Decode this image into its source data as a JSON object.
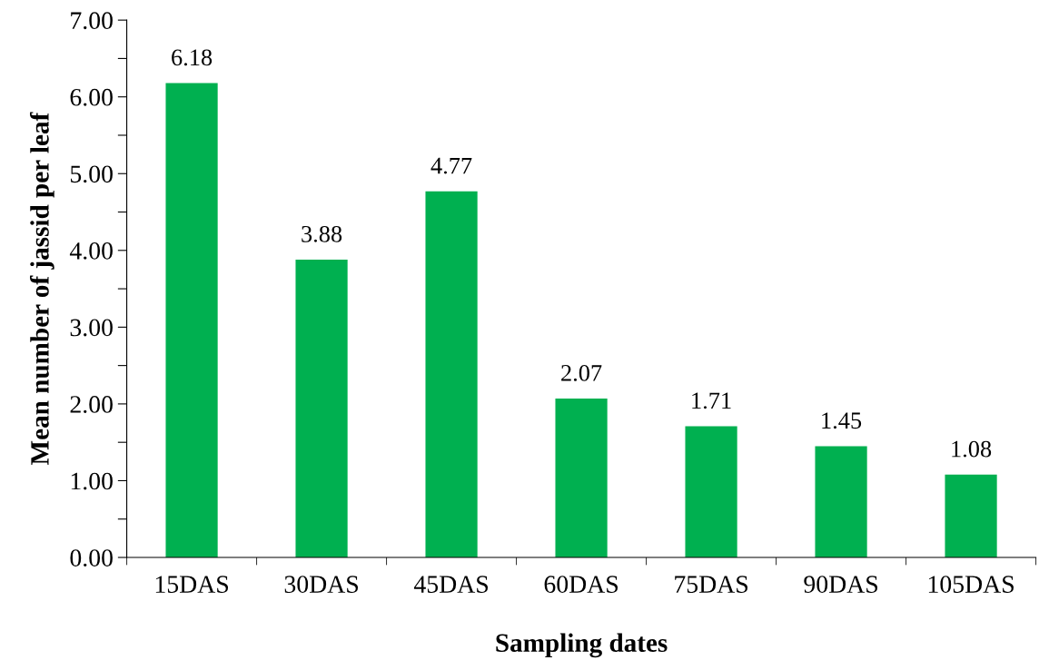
{
  "chart_data": {
    "type": "bar",
    "xlabel": "Sampling dates",
    "ylabel": "Mean number of jassid per leaf",
    "categories": [
      "15DAS",
      "30DAS",
      "45DAS",
      "60DAS",
      "75DAS",
      "90DAS",
      "105DAS"
    ],
    "values": [
      6.18,
      3.88,
      4.77,
      2.07,
      1.71,
      1.45,
      1.08
    ],
    "color": "#00b050",
    "data_labels": true,
    "ylim": [
      0,
      7
    ],
    "yticks": [
      {
        "value": 0,
        "label": "0.00"
      },
      {
        "value": 0.5,
        "label": null
      },
      {
        "value": 1,
        "label": "1.00"
      },
      {
        "value": 1.5,
        "label": null
      },
      {
        "value": 2,
        "label": "2.00"
      },
      {
        "value": 2.5,
        "label": null
      },
      {
        "value": 3,
        "label": "3.00"
      },
      {
        "value": 3.5,
        "label": null
      },
      {
        "value": 4,
        "label": "4.00"
      },
      {
        "value": 4.5,
        "label": null
      },
      {
        "value": 5,
        "label": "5.00"
      },
      {
        "value": 5.5,
        "label": null
      },
      {
        "value": 6,
        "label": "6.00"
      },
      {
        "value": 6.5,
        "label": null
      },
      {
        "value": 7,
        "label": "7.00"
      }
    ],
    "grid": false,
    "legend": false
  }
}
